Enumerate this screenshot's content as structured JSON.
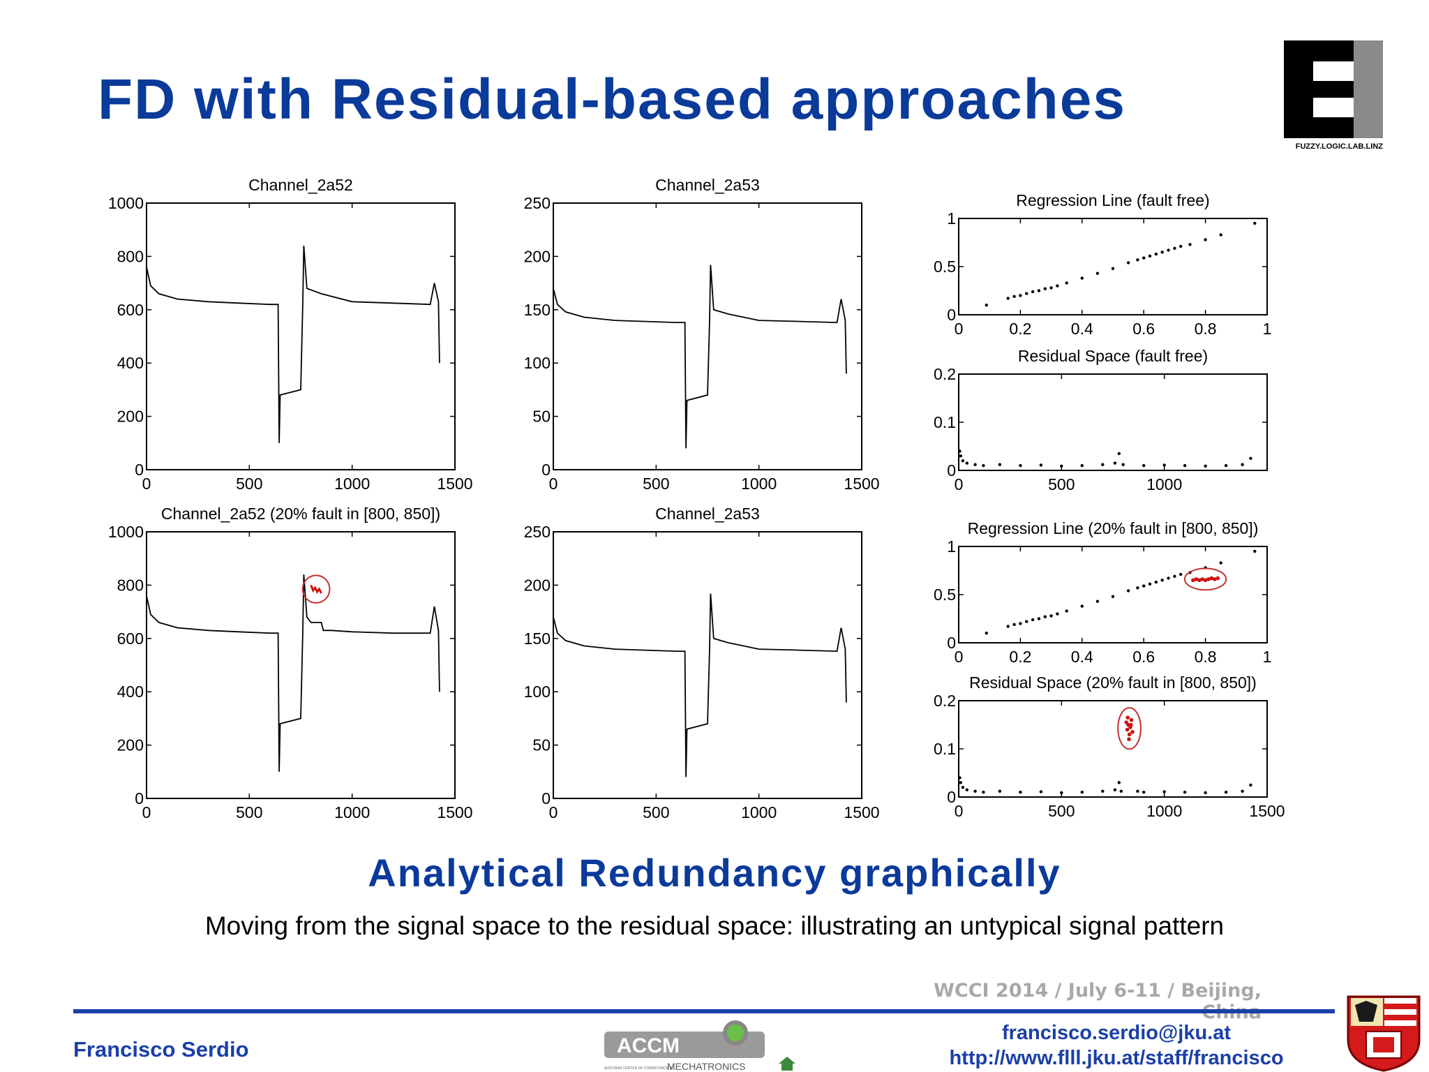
{
  "slide": {
    "title": "FD with Residual-based approaches",
    "subtitle": "Analytical Redundancy graphically",
    "caption": "Moving from the signal space to the residual space: illustrating an untypical signal pattern",
    "conference": "WCCI 2014 / July 6-11 / Beijing, China",
    "author": "Francisco Serdio",
    "email": "francisco.serdio@jku.at",
    "url": "http://www.flll.jku.at/staff/francisco"
  },
  "logos": {
    "flll_text": "FUZZY.LOGIC.LAB.LINZ",
    "accm_text": "ACCM",
    "accm_sub": "MECHATRONICS",
    "accm_small": "AUSTRIAN CENTER OF COMPETENCE IN"
  },
  "colors": {
    "title_blue": "#0a3a9a",
    "line_blue": "#1a3fa8",
    "fault_red": "#d01010",
    "gray": "#a8a8a8"
  },
  "chart_data": [
    {
      "id": "ch52",
      "type": "line",
      "title": "Channel_2a52",
      "xlim": [
        0,
        1500
      ],
      "ylim": [
        0,
        1000
      ],
      "xticks": [
        "0",
        "500",
        "1000",
        "1500"
      ],
      "yticks": [
        "0",
        "200",
        "400",
        "600",
        "800",
        "1000"
      ],
      "series": [
        {
          "x": [
            0,
            20,
            60,
            150,
            300,
            450,
            600,
            640,
            645,
            650,
            750,
            760,
            765,
            780,
            850,
            1000,
            1200,
            1380,
            1400,
            1420,
            1425
          ],
          "y": [
            760,
            690,
            660,
            640,
            630,
            625,
            620,
            620,
            100,
            280,
            300,
            620,
            840,
            680,
            660,
            630,
            625,
            620,
            700,
            630,
            400
          ]
        }
      ]
    },
    {
      "id": "ch53",
      "type": "line",
      "title": "Channel_2a53",
      "xlim": [
        0,
        1500
      ],
      "ylim": [
        0,
        250
      ],
      "xticks": [
        "0",
        "500",
        "1000",
        "1500"
      ],
      "yticks": [
        "0",
        "50",
        "100",
        "150",
        "200",
        "250"
      ],
      "series": [
        {
          "x": [
            0,
            20,
            60,
            150,
            300,
            450,
            600,
            640,
            645,
            650,
            750,
            760,
            765,
            780,
            850,
            1000,
            1200,
            1380,
            1400,
            1420,
            1425
          ],
          "y": [
            170,
            155,
            148,
            143,
            140,
            139,
            138,
            138,
            20,
            65,
            70,
            138,
            192,
            150,
            146,
            140,
            139,
            138,
            160,
            140,
            90
          ]
        }
      ]
    },
    {
      "id": "reg_ff",
      "type": "scatter",
      "title": "Regression Line (fault free)",
      "xlim": [
        0,
        1
      ],
      "ylim": [
        0,
        1
      ],
      "xticks": [
        "0",
        "0.2",
        "0.4",
        "0.6",
        "0.8",
        "1"
      ],
      "yticks": [
        "0",
        "0.5",
        "1"
      ],
      "series": [
        {
          "x": [
            0.09,
            0.16,
            0.18,
            0.2,
            0.22,
            0.24,
            0.26,
            0.28,
            0.3,
            0.32,
            0.35,
            0.4,
            0.45,
            0.5,
            0.55,
            0.58,
            0.6,
            0.62,
            0.64,
            0.66,
            0.68,
            0.7,
            0.72,
            0.75,
            0.8,
            0.85,
            0.96
          ],
          "y": [
            0.1,
            0.17,
            0.19,
            0.2,
            0.22,
            0.24,
            0.25,
            0.27,
            0.28,
            0.3,
            0.33,
            0.38,
            0.43,
            0.48,
            0.54,
            0.57,
            0.59,
            0.61,
            0.63,
            0.65,
            0.67,
            0.69,
            0.71,
            0.73,
            0.78,
            0.83,
            0.95
          ]
        }
      ]
    },
    {
      "id": "res_ff",
      "type": "scatter",
      "title": "Residual Space (fault free)",
      "xlim": [
        0,
        1500
      ],
      "ylim": [
        0,
        0.2
      ],
      "xticks": [
        "0",
        "500",
        "1000"
      ],
      "yticks": [
        "0",
        "0.1",
        "0.2"
      ],
      "series": [
        {
          "x": [
            5,
            10,
            20,
            40,
            80,
            120,
            200,
            300,
            400,
            500,
            600,
            700,
            760,
            780,
            800,
            900,
            1000,
            1100,
            1200,
            1300,
            1380,
            1420
          ],
          "y": [
            0.04,
            0.03,
            0.02,
            0.015,
            0.012,
            0.01,
            0.012,
            0.01,
            0.011,
            0.009,
            0.01,
            0.012,
            0.015,
            0.035,
            0.012,
            0.01,
            0.011,
            0.01,
            0.009,
            0.01,
            0.012,
            0.025
          ]
        }
      ]
    },
    {
      "id": "ch52_fault",
      "type": "line",
      "title": "Channel_2a52 (20% fault in [800, 850])",
      "xlim": [
        0,
        1500
      ],
      "ylim": [
        0,
        1000
      ],
      "xticks": [
        "0",
        "500",
        "1000",
        "1500"
      ],
      "yticks": [
        "0",
        "200",
        "400",
        "600",
        "800",
        "1000"
      ],
      "series": [
        {
          "x": [
            0,
            20,
            60,
            150,
            300,
            450,
            600,
            640,
            645,
            650,
            750,
            760,
            765,
            780,
            800,
            850,
            860,
            900,
            1000,
            1200,
            1380,
            1400,
            1420,
            1425
          ],
          "y": [
            760,
            690,
            660,
            640,
            630,
            625,
            620,
            620,
            100,
            280,
            300,
            620,
            840,
            680,
            660,
            660,
            630,
            630,
            625,
            620,
            620,
            720,
            630,
            400
          ]
        },
        {
          "name": "",
          "x": [
            800,
            810,
            820,
            830,
            840,
            850
          ],
          "y": [
            800,
            780,
            790,
            775,
            785,
            770
          ]
        }
      ]
    },
    {
      "id": "ch53_b",
      "type": "line",
      "title": "Channel_2a53",
      "xlim": [
        0,
        1500
      ],
      "ylim": [
        0,
        250
      ],
      "xticks": [
        "0",
        "500",
        "1000",
        "1500"
      ],
      "yticks": [
        "0",
        "50",
        "100",
        "150",
        "200",
        "250"
      ],
      "series": [
        {
          "x": [
            0,
            20,
            60,
            150,
            300,
            450,
            600,
            640,
            645,
            650,
            750,
            760,
            765,
            780,
            850,
            1000,
            1200,
            1380,
            1400,
            1420,
            1425
          ],
          "y": [
            170,
            155,
            148,
            143,
            140,
            139,
            138,
            138,
            20,
            65,
            70,
            138,
            192,
            150,
            146,
            140,
            139,
            138,
            160,
            140,
            90
          ]
        }
      ]
    },
    {
      "id": "reg_fault",
      "type": "scatter",
      "title": "Regression Line (20% fault in [800, 850])",
      "xlim": [
        0,
        1
      ],
      "ylim": [
        0,
        1
      ],
      "xticks": [
        "0",
        "0.2",
        "0.4",
        "0.6",
        "0.8",
        "1"
      ],
      "yticks": [
        "0",
        "0.5",
        "1"
      ],
      "series": [
        {
          "x": [
            0.09,
            0.16,
            0.18,
            0.2,
            0.22,
            0.24,
            0.26,
            0.28,
            0.3,
            0.32,
            0.35,
            0.4,
            0.45,
            0.5,
            0.55,
            0.58,
            0.6,
            0.62,
            0.64,
            0.66,
            0.68,
            0.7,
            0.72,
            0.75,
            0.8,
            0.85,
            0.96
          ],
          "y": [
            0.1,
            0.17,
            0.19,
            0.2,
            0.22,
            0.24,
            0.25,
            0.27,
            0.28,
            0.3,
            0.33,
            0.38,
            0.43,
            0.48,
            0.54,
            0.57,
            0.59,
            0.61,
            0.63,
            0.65,
            0.67,
            0.69,
            0.71,
            0.73,
            0.78,
            0.83,
            0.95
          ]
        },
        {
          "name": "",
          "x": [
            0.76,
            0.77,
            0.78,
            0.79,
            0.8,
            0.81,
            0.82,
            0.83,
            0.84
          ],
          "y": [
            0.65,
            0.66,
            0.65,
            0.66,
            0.65,
            0.66,
            0.67,
            0.66,
            0.67
          ]
        }
      ]
    },
    {
      "id": "res_fault",
      "type": "scatter",
      "title": "Residual Space (20% fault in [800, 850])",
      "xlim": [
        0,
        1500
      ],
      "ylim": [
        0,
        0.2
      ],
      "xticks": [
        "0",
        "500",
        "1000",
        "1500"
      ],
      "yticks": [
        "0",
        "0.1",
        "0.2"
      ],
      "series": [
        {
          "x": [
            5,
            10,
            20,
            40,
            80,
            120,
            200,
            300,
            400,
            500,
            600,
            700,
            760,
            780,
            790,
            870,
            900,
            1000,
            1100,
            1200,
            1300,
            1380,
            1420
          ],
          "y": [
            0.04,
            0.03,
            0.02,
            0.015,
            0.012,
            0.01,
            0.012,
            0.01,
            0.011,
            0.009,
            0.01,
            0.012,
            0.015,
            0.03,
            0.012,
            0.012,
            0.01,
            0.011,
            0.01,
            0.009,
            0.01,
            0.012,
            0.025
          ]
        },
        {
          "name": "",
          "x": [
            815,
            820,
            825,
            830,
            835,
            840,
            845,
            828,
            822,
            838
          ],
          "y": [
            0.155,
            0.14,
            0.15,
            0.13,
            0.145,
            0.16,
            0.135,
            0.12,
            0.165,
            0.15
          ]
        }
      ]
    }
  ]
}
